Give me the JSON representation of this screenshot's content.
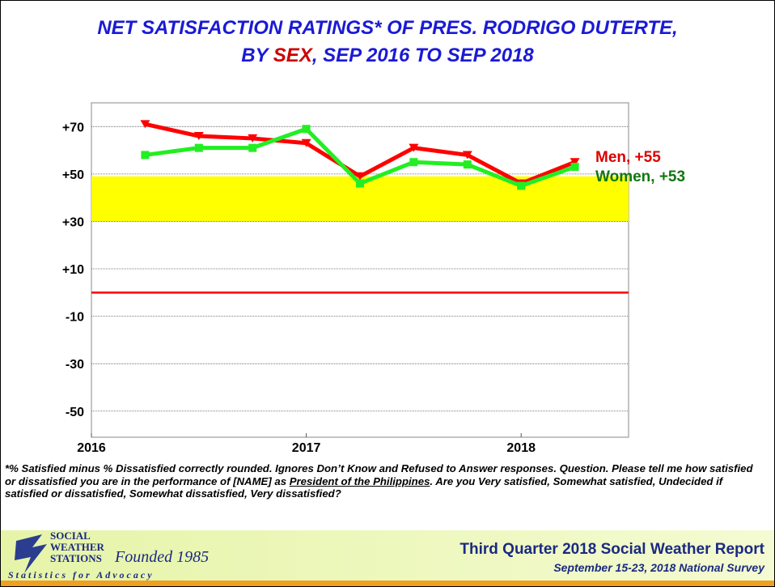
{
  "chart_data": {
    "type": "line",
    "title": {
      "line1": "NET SATISFACTION RATINGS* OF PRES. RODRIGO DUTERTE,",
      "line2_before": "BY ",
      "line2_highlight": "SEX",
      "line2_after": ", SEP 2016 TO SEP 2018"
    },
    "x": [
      2016.25,
      2016.5,
      2016.75,
      2017,
      2017.25,
      2017.5,
      2017.75,
      2018,
      2018.25
    ],
    "series": [
      {
        "name": "Men",
        "color": "#ff0000",
        "marker": "triangle",
        "values": [
          71,
          66,
          65,
          63,
          49,
          61,
          58,
          46,
          55
        ]
      },
      {
        "name": "Women",
        "color": "#22ee22",
        "marker": "square",
        "values": [
          58,
          61,
          61,
          69,
          46,
          55,
          54,
          45,
          53
        ]
      }
    ],
    "annotations": [
      {
        "text": "Men, +55",
        "color": "#dd0000"
      },
      {
        "text": "Women, +53",
        "color": "#117711"
      }
    ],
    "xlim": [
      2016,
      2018.5
    ],
    "xticks": [
      2016,
      2017,
      2018
    ],
    "ylim": [
      -61,
      80
    ],
    "yticks": [
      {
        "value": 70,
        "label": "+70"
      },
      {
        "value": 50,
        "label": "+50"
      },
      {
        "value": 30,
        "label": "+30"
      },
      {
        "value": 10,
        "label": "+10"
      },
      -10,
      -30,
      -50
    ],
    "grid": true,
    "bands": [
      {
        "from": 30,
        "to": 49,
        "color": "#ffff00"
      }
    ],
    "reference_lines": [
      {
        "value": 0,
        "color": "#ff0000"
      }
    ],
    "footnote": {
      "part1": "*% Satisfied minus % Dissatisfied correctly rounded. Ignores Don’t Know and Refused to Answer responses. Question. Please tell me how satisfied or dissatisfied you are in the performance of [NAME] as ",
      "underlined": "President of the Philippines",
      "part2": ". Are you Very satisfied, Somewhat satisfied, Undecided if satisfied or dissatisfied, Somewhat dissatisfied, Very dissatisfied?"
    },
    "footer": {
      "logo_lines": [
        "SOCIAL",
        "WEATHER",
        "STATIONS"
      ],
      "founded": "Founded 1985",
      "motto": "Statistics for Advocacy",
      "report": "Third Quarter 2018 Social Weather Report",
      "survey": "September 15-23, 2018 National Survey"
    }
  }
}
